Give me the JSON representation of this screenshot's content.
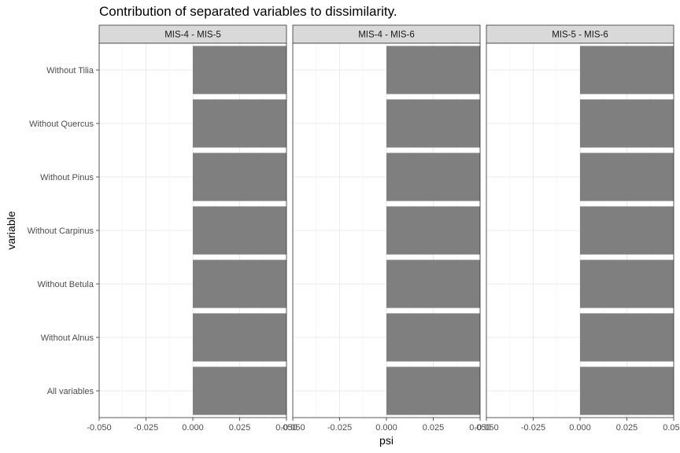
{
  "chart_data": {
    "type": "bar",
    "orientation": "horizontal",
    "title": "Contribution of separated variables to dissimilarity.",
    "xlabel": "psi",
    "ylabel": "variable",
    "xlim": [
      -0.05,
      0.05
    ],
    "x_ticks": [
      "-0.050",
      "-0.025",
      "0.000",
      "0.025",
      "0.050"
    ],
    "x_tick_values": [
      -0.05,
      -0.025,
      0.0,
      0.025,
      0.05
    ],
    "categories": [
      "All variables",
      "Without Alnus",
      "Without Betula",
      "Without Carpinus",
      "Without Pinus",
      "Without Quercus",
      "Without Tilia"
    ],
    "grid": true,
    "bar_color": "#7f7f7f",
    "facets": [
      {
        "name": "MIS-4 - MIS-5",
        "values": [
          0.05,
          0.05,
          0.05,
          0.05,
          0.05,
          0.05,
          0.05
        ]
      },
      {
        "name": "MIS-4 - MIS-6",
        "values": [
          0.05,
          0.05,
          0.05,
          0.05,
          0.05,
          0.05,
          0.05
        ]
      },
      {
        "name": "MIS-5 - MIS-6",
        "values": [
          0.05,
          0.05,
          0.05,
          0.05,
          0.05,
          0.05,
          0.05
        ]
      }
    ]
  }
}
